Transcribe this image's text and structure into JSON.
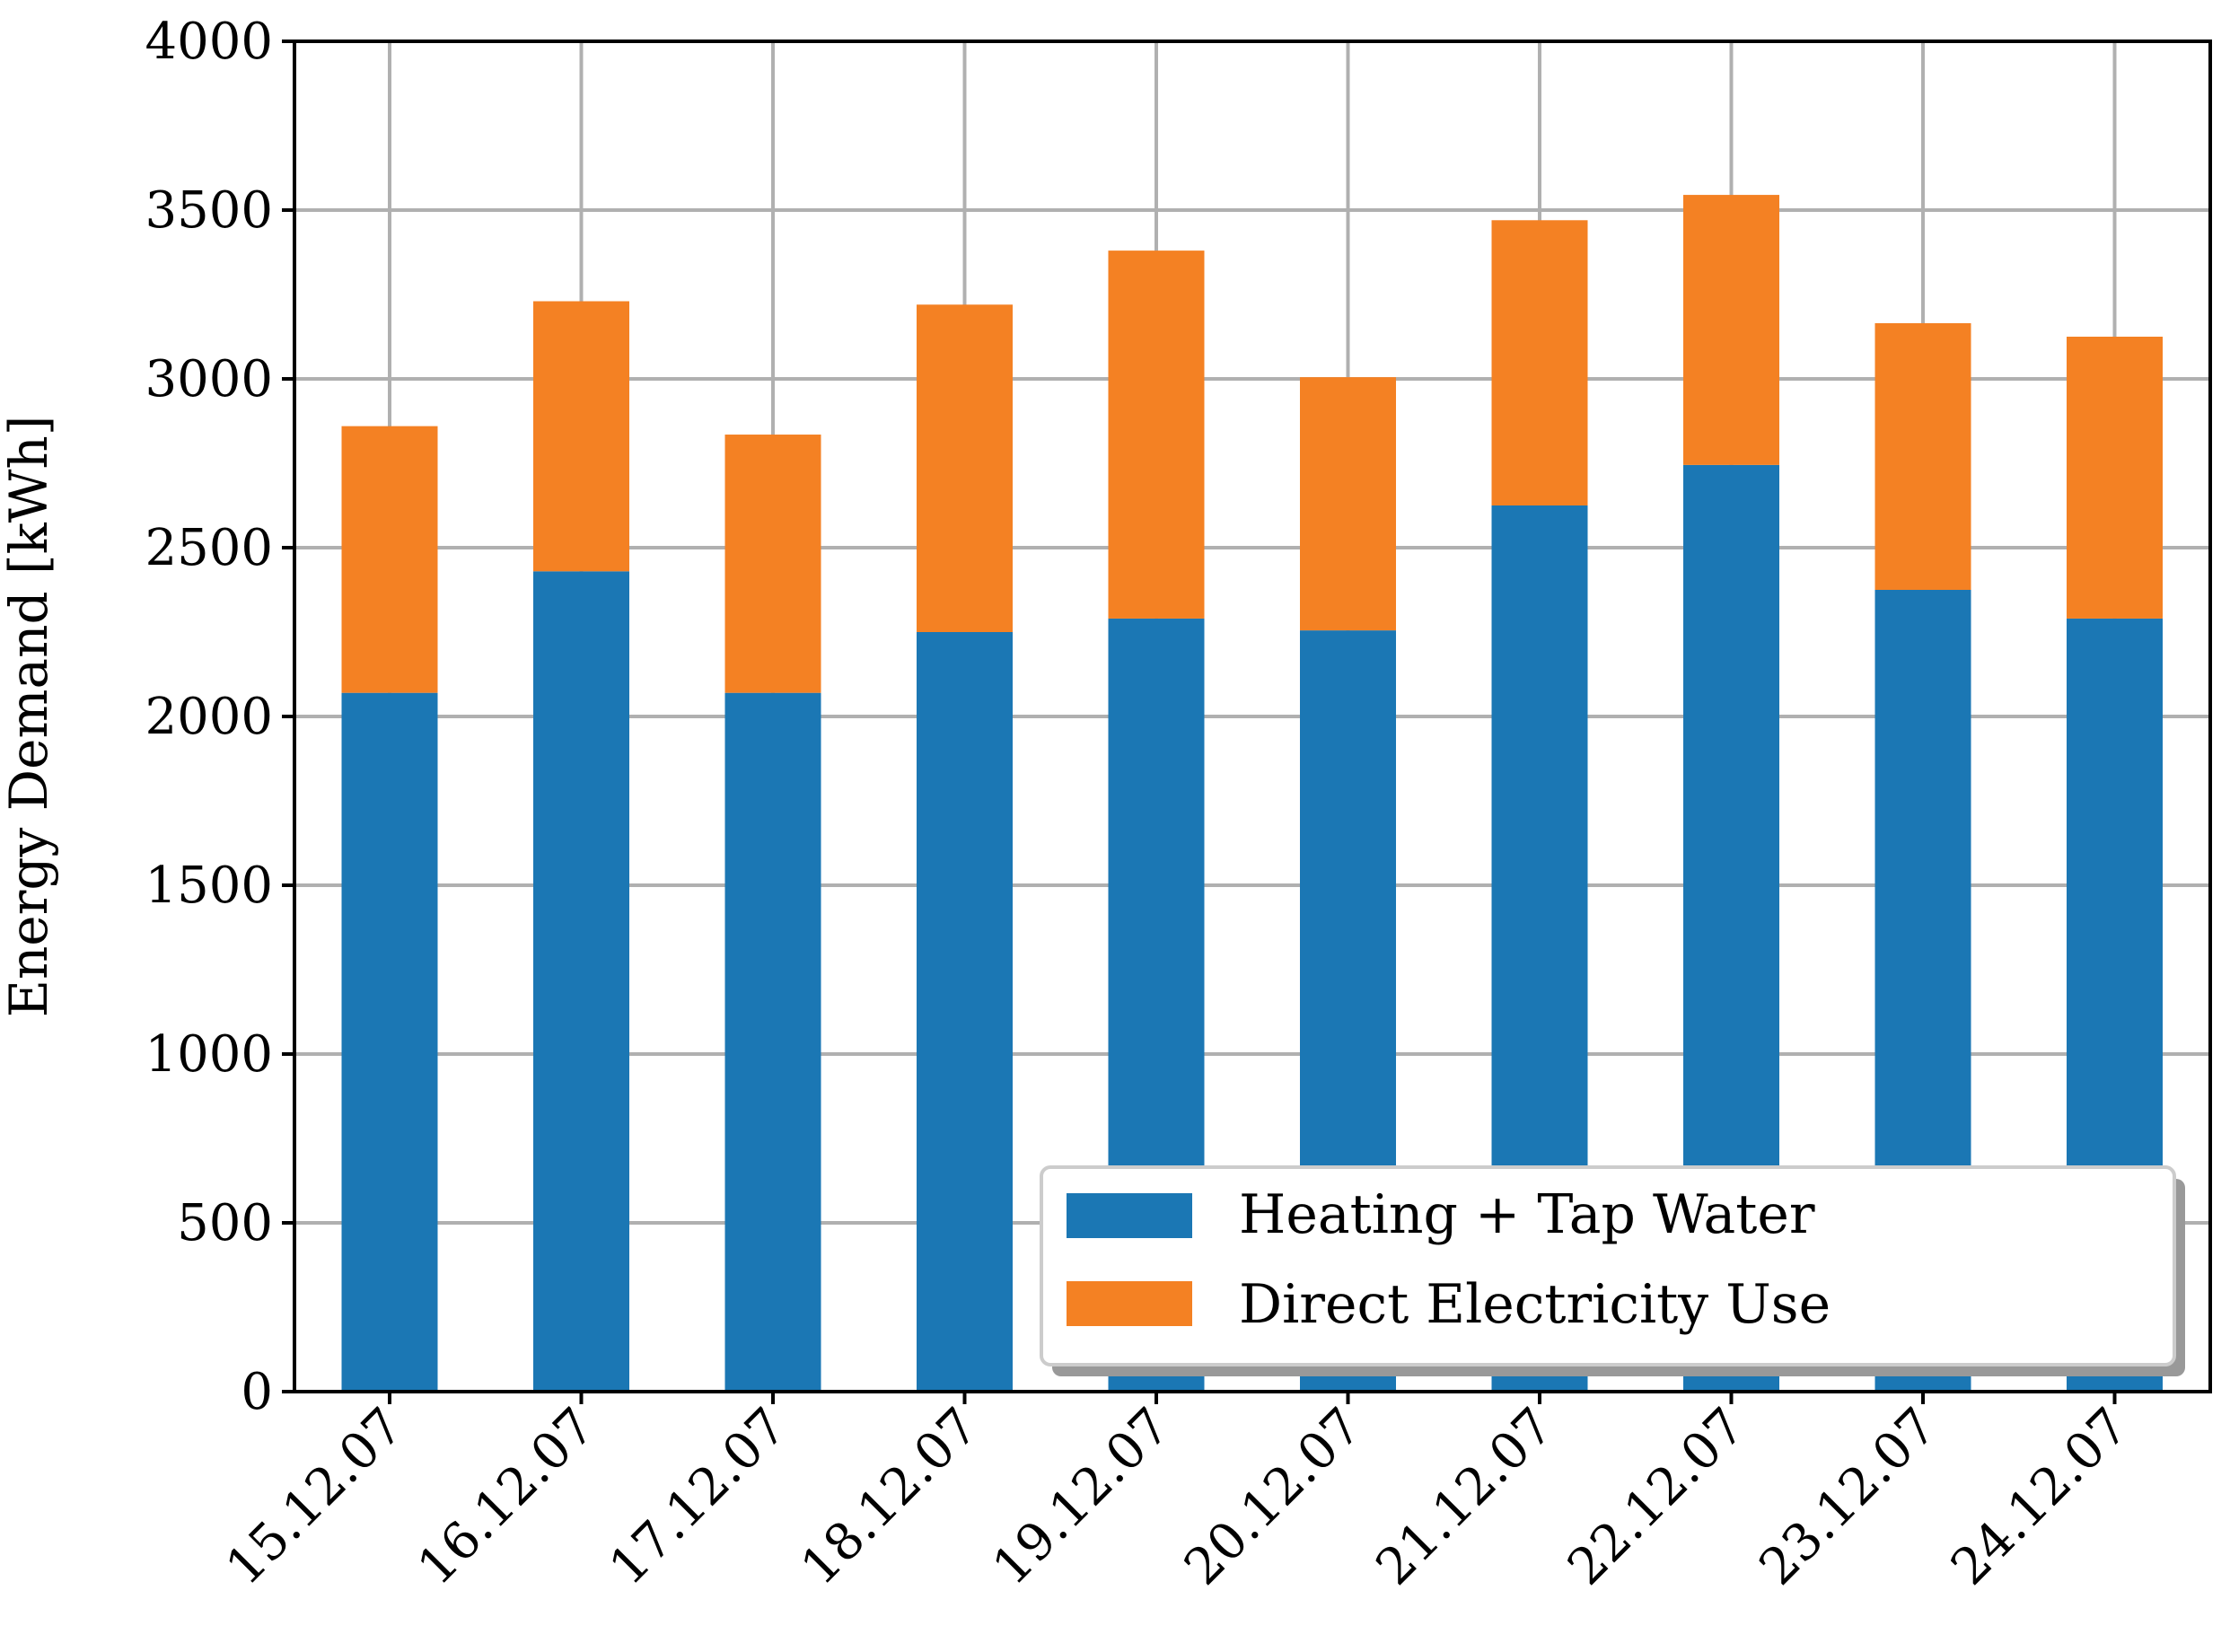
{
  "chart_data": {
    "type": "bar",
    "stacked": true,
    "categories": [
      "15.12.07",
      "16.12.07",
      "17.12.07",
      "18.12.07",
      "19.12.07",
      "20.12.07",
      "21.12.07",
      "22.12.07",
      "23.12.07",
      "24.12.07"
    ],
    "series": [
      {
        "name": "Heating + Tap Water",
        "color": "#1b77b4",
        "values": [
          2070,
          2430,
          2070,
          2250,
          2290,
          2255,
          2625,
          2745,
          2375,
          2290
        ]
      },
      {
        "name": "Direct Electricity Use",
        "color": "#f48123",
        "values": [
          790,
          800,
          765,
          970,
          1090,
          750,
          845,
          800,
          790,
          835
        ]
      }
    ],
    "title": "",
    "xlabel": "",
    "ylabel": "Energy Demand [kWh]",
    "ylim": [
      0,
      4000
    ],
    "yticks": [
      "0",
      "500",
      "1000",
      "1500",
      "2000",
      "2500",
      "3000",
      "3500",
      "4000"
    ],
    "grid": true,
    "legend_position": "lower-right"
  }
}
